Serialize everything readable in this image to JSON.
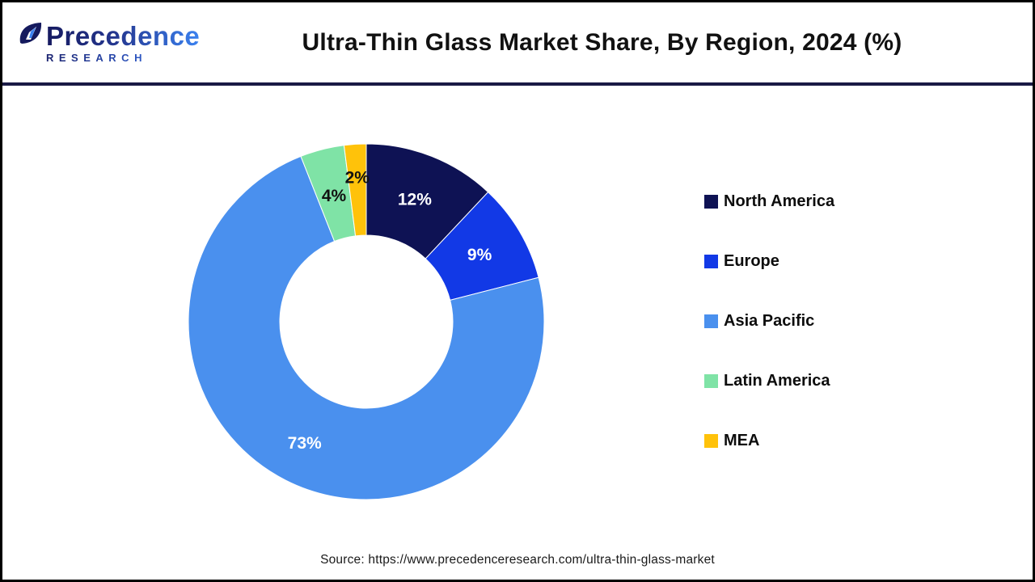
{
  "header": {
    "logo": {
      "name": "Precedence",
      "subname": "RESEARCH"
    },
    "title": "Ultra-Thin Glass Market Share, By Region, 2024 (%)"
  },
  "chart_data": {
    "type": "pie",
    "subtype": "donut",
    "title": "Ultra-Thin Glass Market Share, By Region, 2024 (%)",
    "unit": "%",
    "start_angle_deg": 0,
    "direction": "clockwise",
    "legend_position": "right",
    "categories": [
      "North America",
      "Europe",
      "Asia Pacific",
      "Latin America",
      "MEA"
    ],
    "values": [
      12,
      9,
      73,
      4,
      2
    ],
    "slices": [
      {
        "label": "North America",
        "value": 12,
        "display": "12%",
        "color": "#0E1254",
        "label_color": "#FFFFFF"
      },
      {
        "label": "Europe",
        "value": 9,
        "display": "9%",
        "color": "#1239E6",
        "label_color": "#FFFFFF"
      },
      {
        "label": "Asia Pacific",
        "value": 73,
        "display": "73%",
        "color": "#4A90EE",
        "label_color": "#FFFFFF"
      },
      {
        "label": "Latin America",
        "value": 4,
        "display": "4%",
        "color": "#7FE3A6",
        "label_color": "#111111"
      },
      {
        "label": "MEA",
        "value": 2,
        "display": "2%",
        "color": "#FFC20A",
        "label_color": "#111111"
      }
    ]
  },
  "footer": {
    "source": "Source: https://www.precedenceresearch.com/ultra-thin-glass-market"
  },
  "colors": {
    "background": "#FFFFFF",
    "page_border": "#000000",
    "header_separator": "#1A1A45",
    "title_text": "#111111",
    "logo_gradient_start": "#161A60",
    "logo_gradient_end": "#3B82F0"
  }
}
